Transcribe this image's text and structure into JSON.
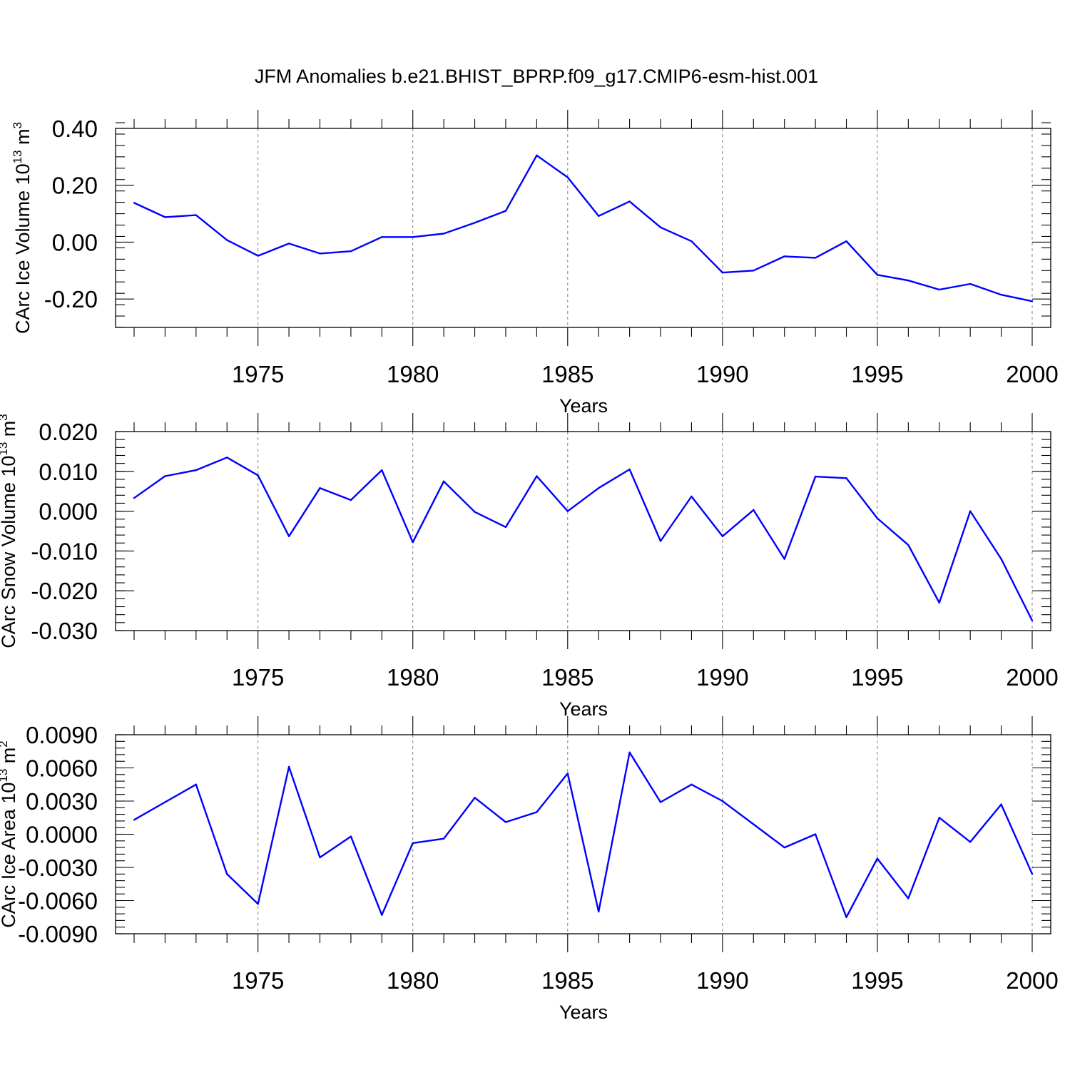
{
  "title": "JFM Anomalies b.e21.BHIST_BPRP.f09_g17.CMIP6-esm-hist.001",
  "colors": {
    "line": "#0000ff",
    "grid": "#808080",
    "axis": "#000000"
  },
  "chart_data": [
    {
      "type": "line",
      "ylabel": "CArc Ice Volume 10",
      "ylabel_exp": "13",
      "ylabel_unit": " m",
      "ylabel_unit_exp": "3",
      "xlabel": "Years",
      "xlim": [
        1971,
        2000
      ],
      "ylim": [
        -0.3,
        0.4
      ],
      "yticks": [
        -0.2,
        0.0,
        0.2,
        0.4
      ],
      "ytick_labels": [
        "-0.20",
        "0.00",
        "0.20",
        "0.40"
      ],
      "xticks": [
        1975,
        1980,
        1985,
        1990,
        1995,
        2000
      ],
      "xtick_labels": [
        "1975",
        "1980",
        "1985",
        "1990",
        "1995",
        "2000"
      ],
      "x": [
        1971,
        1972,
        1973,
        1974,
        1975,
        1976,
        1977,
        1978,
        1979,
        1980,
        1981,
        1982,
        1983,
        1984,
        1985,
        1986,
        1987,
        1988,
        1989,
        1990,
        1991,
        1992,
        1993,
        1994,
        1995,
        1996,
        1997,
        1998,
        1999,
        2000
      ],
      "values": [
        0.138,
        0.088,
        0.095,
        0.007,
        -0.048,
        -0.005,
        -0.04,
        -0.032,
        0.018,
        0.018,
        0.03,
        0.068,
        0.11,
        0.305,
        0.228,
        0.092,
        0.143,
        0.052,
        0.003,
        -0.107,
        -0.1,
        -0.05,
        -0.055,
        0.003,
        -0.115,
        -0.135,
        -0.167,
        -0.147,
        -0.185,
        -0.208
      ]
    },
    {
      "type": "line",
      "ylabel": "CArc Snow Volume 10",
      "ylabel_exp": "13",
      "ylabel_unit": " m",
      "ylabel_unit_exp": "3",
      "xlabel": "Years",
      "xlim": [
        1971,
        2000
      ],
      "ylim": [
        -0.03,
        0.02
      ],
      "yticks": [
        -0.03,
        -0.02,
        -0.01,
        0.0,
        0.01,
        0.02
      ],
      "ytick_labels": [
        "-0.030",
        "-0.020",
        "-0.010",
        "0.000",
        "0.010",
        "0.020"
      ],
      "xticks": [
        1975,
        1980,
        1985,
        1990,
        1995,
        2000
      ],
      "xtick_labels": [
        "1975",
        "1980",
        "1985",
        "1990",
        "1995",
        "2000"
      ],
      "x": [
        1971,
        1972,
        1973,
        1974,
        1975,
        1976,
        1977,
        1978,
        1979,
        1980,
        1981,
        1982,
        1983,
        1984,
        1985,
        1986,
        1987,
        1988,
        1989,
        1990,
        1991,
        1992,
        1993,
        1994,
        1995,
        1996,
        1997,
        1998,
        1999,
        2000
      ],
      "values": [
        0.0033,
        0.0088,
        0.0103,
        0.0135,
        0.009,
        -0.0063,
        0.0058,
        0.0028,
        0.0103,
        -0.0078,
        0.0075,
        -0.0002,
        -0.004,
        0.0088,
        0.0,
        0.0058,
        0.0105,
        -0.0075,
        0.0037,
        -0.0063,
        0.0003,
        -0.012,
        0.0087,
        0.0083,
        -0.0018,
        -0.0085,
        -0.023,
        -0.0,
        -0.012,
        -0.0275
      ]
    },
    {
      "type": "line",
      "ylabel": "CArc Ice Area 10",
      "ylabel_exp": "13",
      "ylabel_unit": " m",
      "ylabel_unit_exp": "2",
      "xlabel": "Years",
      "xlim": [
        1971,
        2000
      ],
      "ylim": [
        -0.009,
        0.009
      ],
      "yticks": [
        -0.009,
        -0.006,
        -0.003,
        0.0,
        0.003,
        0.006,
        0.009
      ],
      "ytick_labels": [
        "-0.0090",
        "-0.0060",
        "-0.0030",
        "0.0000",
        "0.0030",
        "0.0060",
        "0.0090"
      ],
      "xticks": [
        1975,
        1980,
        1985,
        1990,
        1995,
        2000
      ],
      "xtick_labels": [
        "1975",
        "1980",
        "1985",
        "1990",
        "1995",
        "2000"
      ],
      "x": [
        1971,
        1972,
        1973,
        1974,
        1975,
        1976,
        1977,
        1978,
        1979,
        1980,
        1981,
        1982,
        1983,
        1984,
        1985,
        1986,
        1987,
        1988,
        1989,
        1990,
        1991,
        1992,
        1993,
        1994,
        1995,
        1996,
        1997,
        1998,
        1999,
        2000
      ],
      "values": [
        0.0013,
        0.0029,
        0.0045,
        -0.0036,
        -0.0063,
        0.0061,
        -0.0021,
        -0.0002,
        -0.0073,
        -0.0008,
        -0.0004,
        0.0033,
        0.0011,
        0.002,
        0.0055,
        -0.007,
        0.0074,
        0.0029,
        0.0045,
        0.003,
        0.0009,
        -0.0012,
        0.0,
        -0.0075,
        -0.0022,
        -0.0058,
        0.0015,
        -0.0007,
        0.0027,
        -0.0036
      ]
    }
  ]
}
